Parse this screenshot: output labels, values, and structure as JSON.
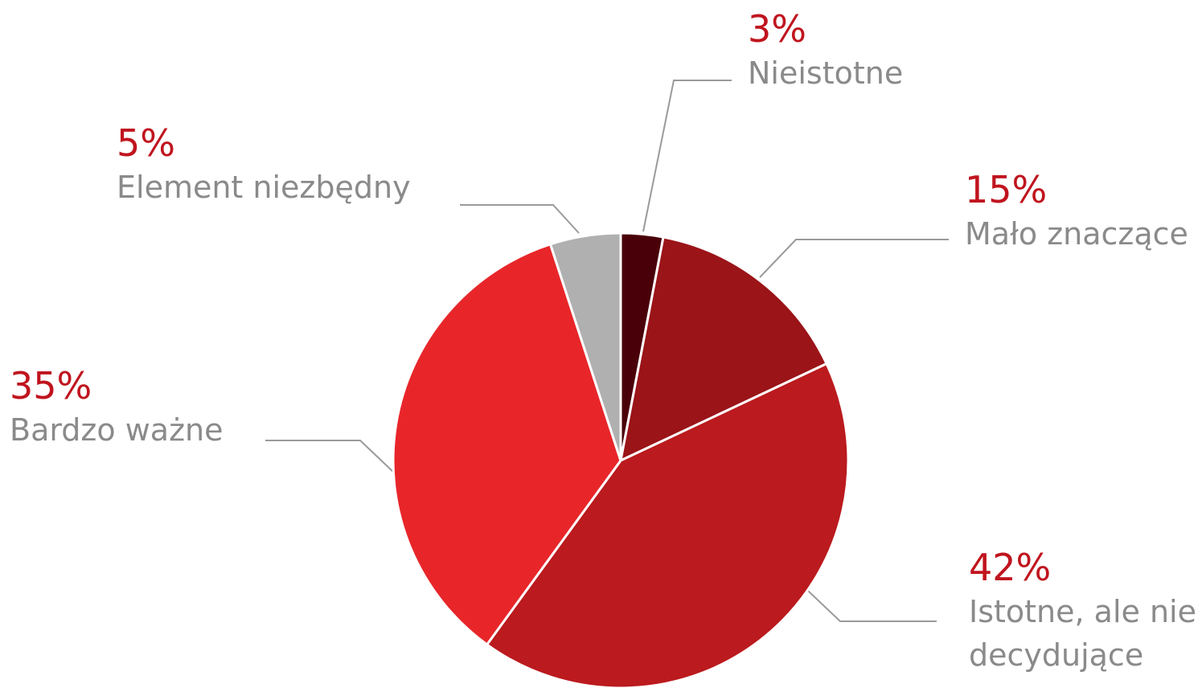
{
  "chart_data": {
    "type": "pie",
    "categories": [
      "Nieistotne",
      "Mało znaczące",
      "Istotne, ale nie decydujące",
      "Bardzo ważne",
      "Element niezbędny"
    ],
    "values": [
      3,
      15,
      42,
      35,
      5
    ],
    "value_labels": [
      "3%",
      "15%",
      "42%",
      "35%",
      "5%"
    ],
    "colors": [
      "#4a0008",
      "#9a1418",
      "#bb1a1e",
      "#e8262a",
      "#b0b0b0"
    ]
  }
}
